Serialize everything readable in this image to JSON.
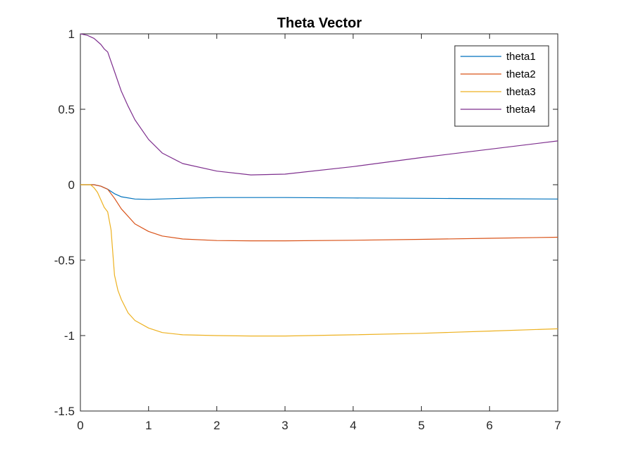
{
  "chart_data": {
    "type": "line",
    "title": "Theta Vector",
    "xlabel": "",
    "ylabel": "",
    "xlim": [
      0,
      7
    ],
    "ylim": [
      -1.5,
      1
    ],
    "xticks": [
      0,
      1,
      2,
      3,
      4,
      5,
      6,
      7
    ],
    "xtick_labels": [
      "0",
      "1",
      "2",
      "3",
      "4",
      "5",
      "6",
      "7"
    ],
    "yticks": [
      1,
      0.5,
      0,
      -0.5,
      -1,
      -1.5
    ],
    "ytick_labels": [
      "1",
      "0.5",
      "0",
      "-0.5",
      "-1",
      "-1.5"
    ],
    "grid": false,
    "legend_position": "top-right",
    "series": [
      {
        "name": "theta1",
        "color": "#0072BD",
        "x": [
          0,
          0.2,
          0.3,
          0.4,
          0.5,
          0.6,
          0.8,
          1.0,
          1.5,
          2.0,
          2.5,
          3.0,
          4.0,
          5.0,
          6.0,
          7.0
        ],
        "y": [
          0,
          0,
          -0.01,
          -0.03,
          -0.06,
          -0.08,
          -0.095,
          -0.097,
          -0.09,
          -0.085,
          -0.085,
          -0.085,
          -0.088,
          -0.09,
          -0.093,
          -0.095
        ]
      },
      {
        "name": "theta2",
        "color": "#D95319",
        "x": [
          0,
          0.2,
          0.3,
          0.4,
          0.5,
          0.6,
          0.8,
          1.0,
          1.2,
          1.5,
          2.0,
          2.5,
          3.0,
          4.0,
          5.0,
          6.0,
          7.0
        ],
        "y": [
          0,
          0,
          -0.01,
          -0.03,
          -0.09,
          -0.16,
          -0.26,
          -0.31,
          -0.34,
          -0.36,
          -0.37,
          -0.372,
          -0.372,
          -0.368,
          -0.362,
          -0.355,
          -0.348
        ]
      },
      {
        "name": "theta3",
        "color": "#EDB120",
        "x": [
          0,
          0.15,
          0.2,
          0.25,
          0.3,
          0.35,
          0.4,
          0.45,
          0.5,
          0.55,
          0.6,
          0.7,
          0.8,
          1.0,
          1.2,
          1.5,
          2.0,
          2.5,
          3.0,
          4.0,
          5.0,
          6.0,
          7.0
        ],
        "y": [
          0,
          0,
          -0.02,
          -0.05,
          -0.1,
          -0.15,
          -0.18,
          -0.3,
          -0.6,
          -0.7,
          -0.76,
          -0.85,
          -0.9,
          -0.95,
          -0.98,
          -0.995,
          -1.0,
          -1.003,
          -1.003,
          -0.995,
          -0.985,
          -0.97,
          -0.955
        ]
      },
      {
        "name": "theta4",
        "color": "#7E2F8E",
        "x": [
          0,
          0.1,
          0.2,
          0.3,
          0.35,
          0.4,
          0.5,
          0.6,
          0.7,
          0.8,
          1.0,
          1.2,
          1.5,
          2.0,
          2.5,
          3.0,
          4.0,
          5.0,
          6.0,
          7.0
        ],
        "y": [
          1,
          0.99,
          0.97,
          0.93,
          0.9,
          0.88,
          0.75,
          0.62,
          0.52,
          0.43,
          0.3,
          0.21,
          0.14,
          0.09,
          0.065,
          0.07,
          0.12,
          0.18,
          0.235,
          0.29
        ]
      }
    ]
  }
}
